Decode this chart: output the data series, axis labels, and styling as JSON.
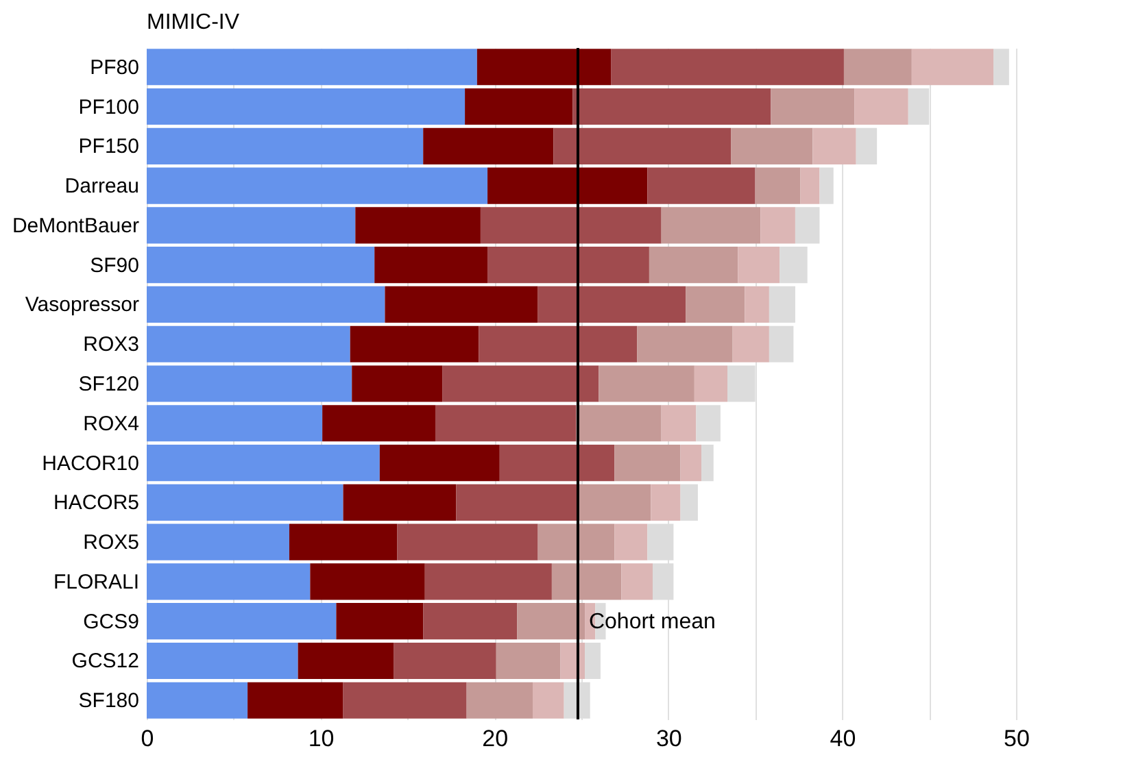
{
  "chart_data": {
    "type": "bar",
    "orientation": "horizontal",
    "stacked": true,
    "title": "MIMIC-IV",
    "categories": [
      "PF80",
      "PF100",
      "PF150",
      "Darreau",
      "DeMontBauer",
      "SF90",
      "Vasopressor",
      "ROX3",
      "SF120",
      "ROX4",
      "HACOR10",
      "HACOR5",
      "ROX5",
      "FLORALI",
      "GCS9",
      "GCS12",
      "SF180"
    ],
    "series": [
      {
        "color": "#6593ec",
        "values": [
          19.0,
          18.3,
          15.9,
          19.6,
          12.0,
          13.1,
          13.7,
          11.7,
          11.8,
          10.1,
          13.4,
          11.3,
          8.2,
          9.4,
          10.9,
          8.7,
          5.8
        ]
      },
      {
        "color": "#7a0000",
        "values": [
          7.7,
          6.2,
          7.5,
          9.2,
          7.2,
          6.5,
          8.8,
          7.4,
          5.2,
          6.5,
          6.9,
          6.5,
          6.2,
          6.6,
          5.0,
          5.5,
          5.5
        ]
      },
      {
        "color": "#a04b4e",
        "values": [
          13.4,
          11.4,
          10.2,
          6.2,
          10.4,
          9.3,
          8.5,
          9.1,
          9.0,
          8.1,
          6.6,
          7.1,
          8.1,
          7.3,
          5.4,
          5.9,
          7.1
        ]
      },
      {
        "color": "#c59a97",
        "values": [
          3.9,
          4.8,
          4.7,
          2.6,
          5.7,
          5.1,
          3.4,
          5.5,
          5.5,
          4.9,
          3.8,
          4.1,
          4.4,
          4.0,
          3.9,
          3.7,
          3.8
        ]
      },
      {
        "color": "#dcb6b5",
        "values": [
          4.7,
          3.1,
          2.5,
          1.1,
          2.0,
          2.4,
          1.4,
          2.1,
          1.9,
          2.0,
          1.2,
          1.7,
          1.9,
          1.8,
          0.6,
          1.4,
          1.8
        ]
      },
      {
        "color": "#dcdcdc",
        "values": [
          0.9,
          1.2,
          1.2,
          0.8,
          1.4,
          1.6,
          1.5,
          1.4,
          1.6,
          1.4,
          0.7,
          1.0,
          1.5,
          1.2,
          0.6,
          0.9,
          1.5
        ]
      }
    ],
    "xlim": [
      0,
      50
    ],
    "xticks": [
      0,
      {
        "value": 5,
        "label": null
      },
      10,
      {
        "value": 15,
        "label": null
      },
      20,
      {
        "value": 25,
        "label": null
      },
      30,
      {
        "value": 35,
        "label": null
      },
      40,
      {
        "value": 45,
        "label": null
      },
      50
    ],
    "grid": "x",
    "legend": false,
    "ref_lines": [
      {
        "axis": "x",
        "value": 24.8,
        "label": "Cohort mean",
        "color": "#000000"
      }
    ]
  }
}
